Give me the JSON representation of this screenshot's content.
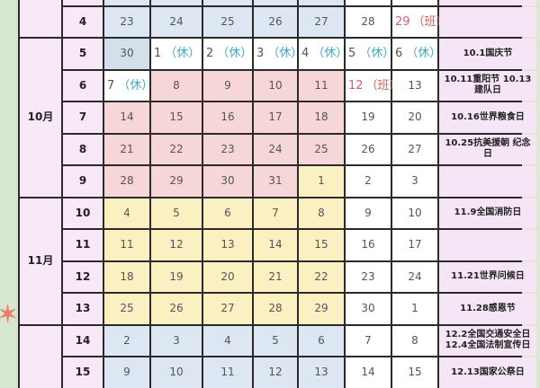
{
  "colors": {
    "weekday_sep": "#dce7f3",
    "weekday_oct": "#f6d6d6",
    "weekday_nov": "#fbf0c2",
    "weekend": "#ffffff",
    "rest_tag": "#49a7c2",
    "work_tag": "#d06262",
    "label_bg": "#f8e8f8"
  },
  "months": [
    {
      "label": "",
      "rows": 2
    },
    {
      "label": "10月",
      "rows": 5
    },
    {
      "label": "11月",
      "rows": 4
    },
    {
      "label": "",
      "rows": 2
    }
  ],
  "rows": [
    {
      "week": "",
      "days": [
        {
          "t": "",
          "bg": "blue"
        },
        {
          "t": "",
          "bg": "blue"
        },
        {
          "t": "",
          "bg": "blue"
        },
        {
          "t": "",
          "bg": "blue"
        },
        {
          "t": "",
          "bg": "blue"
        },
        {
          "t": "",
          "bg": "white"
        },
        {
          "t": "",
          "bg": "white"
        }
      ],
      "note": ""
    },
    {
      "week": "4",
      "days": [
        {
          "t": "23",
          "bg": "blue"
        },
        {
          "t": "24",
          "bg": "blue"
        },
        {
          "t": "25",
          "bg": "blue"
        },
        {
          "t": "26",
          "bg": "blue"
        },
        {
          "t": "27",
          "bg": "blue"
        },
        {
          "t": "28",
          "bg": "white"
        },
        {
          "t": "29",
          "bg": "white",
          "tag": "（班）",
          "type": "work"
        }
      ],
      "note": ""
    },
    {
      "week": "5",
      "days": [
        {
          "t": "30",
          "bg": "blue2"
        },
        {
          "t": "1",
          "bg": "white",
          "tag": "（休）",
          "type": "rest"
        },
        {
          "t": "2",
          "bg": "white",
          "tag": "（休）",
          "type": "rest"
        },
        {
          "t": "3",
          "bg": "white",
          "tag": "（休）",
          "type": "rest"
        },
        {
          "t": "4",
          "bg": "white",
          "tag": "（休）",
          "type": "rest"
        },
        {
          "t": "5",
          "bg": "white",
          "tag": "（休）",
          "type": "rest"
        },
        {
          "t": "6",
          "bg": "white",
          "tag": "（休）",
          "type": "rest"
        }
      ],
      "note": "10.1国庆节"
    },
    {
      "week": "6",
      "days": [
        {
          "t": "7",
          "bg": "white",
          "tag": "（休）",
          "type": "rest"
        },
        {
          "t": "8",
          "bg": "pink"
        },
        {
          "t": "9",
          "bg": "pink"
        },
        {
          "t": "10",
          "bg": "pink"
        },
        {
          "t": "11",
          "bg": "pink"
        },
        {
          "t": "12",
          "bg": "white",
          "tag": "（班）",
          "type": "work"
        },
        {
          "t": "13",
          "bg": "white"
        }
      ],
      "note": "10.11重阳节 10.13建队日"
    },
    {
      "week": "7",
      "days": [
        {
          "t": "14",
          "bg": "pink"
        },
        {
          "t": "15",
          "bg": "pink"
        },
        {
          "t": "16",
          "bg": "pink"
        },
        {
          "t": "17",
          "bg": "pink"
        },
        {
          "t": "18",
          "bg": "pink"
        },
        {
          "t": "19",
          "bg": "white"
        },
        {
          "t": "20",
          "bg": "white"
        }
      ],
      "note": "10.16世界粮食日"
    },
    {
      "week": "8",
      "days": [
        {
          "t": "21",
          "bg": "pink"
        },
        {
          "t": "22",
          "bg": "pink"
        },
        {
          "t": "23",
          "bg": "pink"
        },
        {
          "t": "24",
          "bg": "pink"
        },
        {
          "t": "25",
          "bg": "pink"
        },
        {
          "t": "26",
          "bg": "white"
        },
        {
          "t": "27",
          "bg": "white"
        }
      ],
      "note": "10.25抗美援朝 纪念日"
    },
    {
      "week": "9",
      "days": [
        {
          "t": "28",
          "bg": "pink"
        },
        {
          "t": "29",
          "bg": "pink"
        },
        {
          "t": "30",
          "bg": "pink"
        },
        {
          "t": "31",
          "bg": "pink"
        },
        {
          "t": "1",
          "bg": "yellow"
        },
        {
          "t": "2",
          "bg": "white"
        },
        {
          "t": "3",
          "bg": "white"
        }
      ],
      "note": ""
    },
    {
      "week": "10",
      "days": [
        {
          "t": "4",
          "bg": "yellow"
        },
        {
          "t": "5",
          "bg": "yellow"
        },
        {
          "t": "6",
          "bg": "yellow"
        },
        {
          "t": "7",
          "bg": "yellow"
        },
        {
          "t": "8",
          "bg": "yellow"
        },
        {
          "t": "9",
          "bg": "white"
        },
        {
          "t": "10",
          "bg": "white"
        }
      ],
      "note": "11.9全国消防日"
    },
    {
      "week": "11",
      "days": [
        {
          "t": "11",
          "bg": "yellow"
        },
        {
          "t": "12",
          "bg": "yellow"
        },
        {
          "t": "13",
          "bg": "yellow"
        },
        {
          "t": "14",
          "bg": "yellow"
        },
        {
          "t": "15",
          "bg": "yellow"
        },
        {
          "t": "16",
          "bg": "white"
        },
        {
          "t": "17",
          "bg": "white"
        }
      ],
      "note": ""
    },
    {
      "week": "12",
      "days": [
        {
          "t": "18",
          "bg": "yellow"
        },
        {
          "t": "19",
          "bg": "yellow"
        },
        {
          "t": "20",
          "bg": "yellow"
        },
        {
          "t": "21",
          "bg": "yellow"
        },
        {
          "t": "22",
          "bg": "yellow"
        },
        {
          "t": "23",
          "bg": "white"
        },
        {
          "t": "24",
          "bg": "white"
        }
      ],
      "note": "11.21世界问候日"
    },
    {
      "week": "13",
      "days": [
        {
          "t": "25",
          "bg": "yellow"
        },
        {
          "t": "26",
          "bg": "yellow"
        },
        {
          "t": "27",
          "bg": "yellow"
        },
        {
          "t": "28",
          "bg": "yellow"
        },
        {
          "t": "29",
          "bg": "yellow"
        },
        {
          "t": "30",
          "bg": "white"
        },
        {
          "t": "1",
          "bg": "white"
        }
      ],
      "note": "11.28感恩节"
    },
    {
      "week": "14",
      "days": [
        {
          "t": "2",
          "bg": "blue"
        },
        {
          "t": "3",
          "bg": "blue"
        },
        {
          "t": "4",
          "bg": "blue"
        },
        {
          "t": "5",
          "bg": "blue"
        },
        {
          "t": "6",
          "bg": "blue"
        },
        {
          "t": "7",
          "bg": "white"
        },
        {
          "t": "8",
          "bg": "white"
        }
      ],
      "note": "12.2全国交通安全日12.4全国法制宣传日"
    },
    {
      "week": "15",
      "days": [
        {
          "t": "9",
          "bg": "blue"
        },
        {
          "t": "10",
          "bg": "blue"
        },
        {
          "t": "11",
          "bg": "blue"
        },
        {
          "t": "12",
          "bg": "blue"
        },
        {
          "t": "13",
          "bg": "blue"
        },
        {
          "t": "14",
          "bg": "white"
        },
        {
          "t": "15",
          "bg": "white"
        }
      ],
      "note": "12.13国家公祭日"
    }
  ]
}
